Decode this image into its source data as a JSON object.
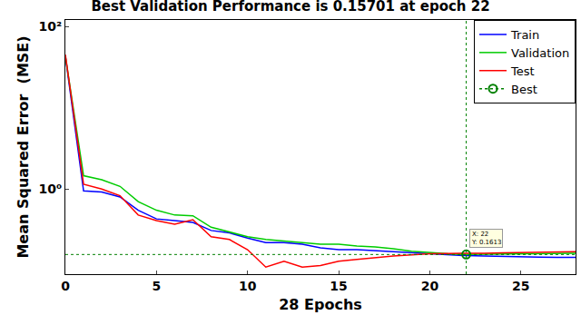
{
  "chart_data": {
    "type": "line",
    "title": "Best Validation Performance is 0.15701 at epoch 22",
    "x_label": "28 Epochs",
    "y_label": "Mean Squared Error  (MSE)",
    "log": "y",
    "grid": false,
    "legend": "top right",
    "x": [
      0,
      1,
      2,
      3,
      4,
      5,
      6,
      7,
      8,
      9,
      10,
      11,
      12,
      13,
      14,
      15,
      16,
      17,
      18,
      19,
      20,
      21,
      22,
      23,
      24,
      25,
      26,
      27,
      28
    ],
    "xlim": [
      0,
      28
    ],
    "xticks": [
      0,
      5,
      10,
      15,
      20,
      25
    ],
    "ylim": [
      0.09,
      120
    ],
    "yticks": [
      {
        "value": 1,
        "label": "10⁰"
      },
      {
        "value": 100,
        "label": "10²"
      }
    ],
    "series": [
      {
        "name": "Train",
        "color": "#0000ff",
        "line_style": "solid",
        "values": [
          43,
          0.95,
          0.92,
          0.8,
          0.55,
          0.43,
          0.41,
          0.39,
          0.31,
          0.29,
          0.25,
          0.22,
          0.22,
          0.21,
          0.19,
          0.18,
          0.18,
          0.175,
          0.17,
          0.165,
          0.16,
          0.155,
          0.152,
          0.15,
          0.148,
          0.147,
          0.146,
          0.145,
          0.145
        ]
      },
      {
        "name": "Validation",
        "color": "#00cc00",
        "line_style": "solid",
        "values": [
          43,
          1.46,
          1.3,
          1.08,
          0.7,
          0.55,
          0.48,
          0.47,
          0.34,
          0.3,
          0.26,
          0.24,
          0.23,
          0.22,
          0.21,
          0.21,
          0.2,
          0.195,
          0.185,
          0.172,
          0.165,
          0.16,
          0.15701,
          0.158,
          0.16,
          0.161,
          0.162,
          0.163,
          0.163
        ]
      },
      {
        "name": "Test",
        "color": "#ff0000",
        "line_style": "solid",
        "values": [
          45,
          1.15,
          1.0,
          0.83,
          0.48,
          0.41,
          0.37,
          0.42,
          0.26,
          0.24,
          0.18,
          0.11,
          0.13,
          0.11,
          0.115,
          0.13,
          0.137,
          0.144,
          0.15,
          0.155,
          0.16,
          0.162,
          0.1613,
          0.163,
          0.165,
          0.167,
          0.168,
          0.169,
          0.17
        ]
      },
      {
        "name": "Best",
        "color": "#008000",
        "line_style": "dotted",
        "marker": "circle",
        "values": [
          null,
          null,
          null,
          null,
          null,
          null,
          null,
          null,
          null,
          null,
          null,
          null,
          null,
          null,
          null,
          null,
          null,
          null,
          null,
          null,
          null,
          null,
          0.15701,
          null,
          null,
          null,
          null,
          null,
          null
        ]
      }
    ],
    "annotations": [
      {
        "x": 22,
        "y": 0.1613,
        "text": "X: 22\nY: 0.1613"
      }
    ]
  }
}
